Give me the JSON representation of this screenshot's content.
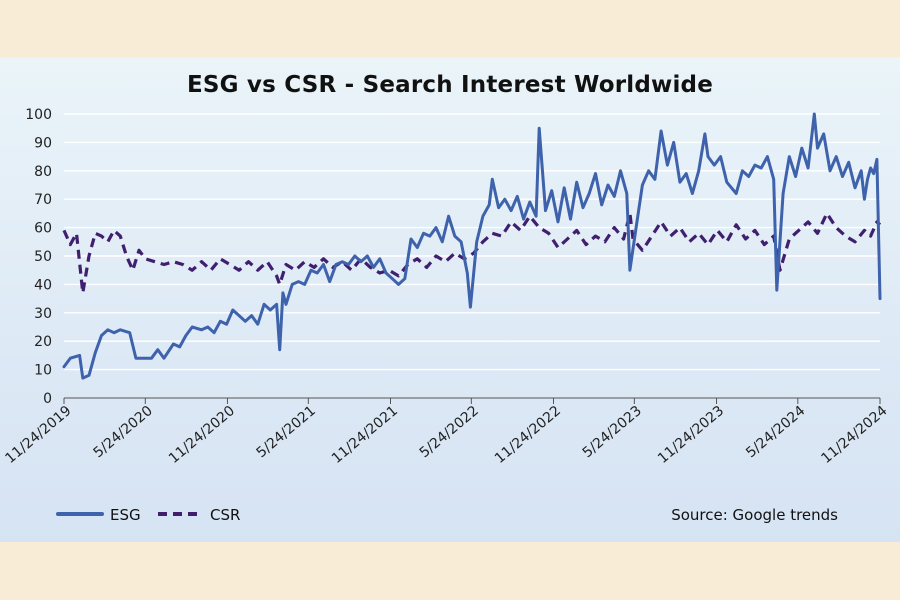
{
  "chart_data": {
    "type": "line",
    "title": "ESG vs CSR - Search Interest Worldwide",
    "xlabel": "",
    "ylabel": "",
    "ylim": [
      0,
      100
    ],
    "xlim": [
      "2019-11-24",
      "2024-11-24"
    ],
    "yticks": [
      0,
      10,
      20,
      30,
      40,
      50,
      60,
      70,
      80,
      90,
      100
    ],
    "xtick_labels": [
      "11/24/2019",
      "5/24/2020",
      "11/24/2020",
      "5/24/2021",
      "11/24/2021",
      "5/24/2022",
      "11/24/2022",
      "5/24/2023",
      "11/24/2023",
      "5/24/2024",
      "11/24/2024"
    ],
    "xtick_dates": [
      "2019-11-24",
      "2020-05-24",
      "2020-11-24",
      "2021-05-24",
      "2021-11-24",
      "2022-05-24",
      "2022-11-24",
      "2023-05-24",
      "2023-11-24",
      "2024-05-24",
      "2024-11-24"
    ],
    "grid": true,
    "legend_position": "bottom-left",
    "source": "Source: Google trends",
    "series": [
      {
        "name": "ESG",
        "style": "solid",
        "color": "#3e62ab",
        "points": [
          [
            "2019-11-24",
            11
          ],
          [
            "2019-12-08",
            14
          ],
          [
            "2019-12-29",
            15
          ],
          [
            "2020-01-05",
            7
          ],
          [
            "2020-01-19",
            8
          ],
          [
            "2020-02-02",
            16
          ],
          [
            "2020-02-16",
            22
          ],
          [
            "2020-03-01",
            24
          ],
          [
            "2020-03-15",
            23
          ],
          [
            "2020-03-29",
            24
          ],
          [
            "2020-04-19",
            23
          ],
          [
            "2020-05-03",
            14
          ],
          [
            "2020-05-17",
            14
          ],
          [
            "2020-06-07",
            14
          ],
          [
            "2020-06-21",
            17
          ],
          [
            "2020-07-05",
            14
          ],
          [
            "2020-07-26",
            19
          ],
          [
            "2020-08-09",
            18
          ],
          [
            "2020-08-23",
            22
          ],
          [
            "2020-09-06",
            25
          ],
          [
            "2020-09-27",
            24
          ],
          [
            "2020-10-11",
            25
          ],
          [
            "2020-10-25",
            23
          ],
          [
            "2020-11-08",
            27
          ],
          [
            "2020-11-22",
            26
          ],
          [
            "2020-12-06",
            31
          ],
          [
            "2020-12-20",
            29
          ],
          [
            "2021-01-03",
            27
          ],
          [
            "2021-01-17",
            29
          ],
          [
            "2021-01-31",
            26
          ],
          [
            "2021-02-14",
            33
          ],
          [
            "2021-02-28",
            31
          ],
          [
            "2021-03-14",
            33
          ],
          [
            "2021-03-21",
            17
          ],
          [
            "2021-03-28",
            37
          ],
          [
            "2021-04-04",
            33
          ],
          [
            "2021-04-18",
            40
          ],
          [
            "2021-05-02",
            41
          ],
          [
            "2021-05-16",
            40
          ],
          [
            "2021-05-30",
            45
          ],
          [
            "2021-06-13",
            44
          ],
          [
            "2021-06-27",
            47
          ],
          [
            "2021-07-11",
            41
          ],
          [
            "2021-07-25",
            47
          ],
          [
            "2021-08-08",
            48
          ],
          [
            "2021-08-22",
            47
          ],
          [
            "2021-09-05",
            50
          ],
          [
            "2021-09-19",
            48
          ],
          [
            "2021-10-03",
            50
          ],
          [
            "2021-10-17",
            46
          ],
          [
            "2021-10-31",
            49
          ],
          [
            "2021-11-14",
            44
          ],
          [
            "2021-11-28",
            42
          ],
          [
            "2021-12-12",
            40
          ],
          [
            "2021-12-26",
            42
          ],
          [
            "2022-01-09",
            56
          ],
          [
            "2022-01-23",
            53
          ],
          [
            "2022-02-06",
            58
          ],
          [
            "2022-02-20",
            57
          ],
          [
            "2022-03-06",
            60
          ],
          [
            "2022-03-20",
            55
          ],
          [
            "2022-04-03",
            64
          ],
          [
            "2022-04-17",
            57
          ],
          [
            "2022-05-01",
            55
          ],
          [
            "2022-05-15",
            44
          ],
          [
            "2022-05-22",
            32
          ],
          [
            "2022-06-05",
            55
          ],
          [
            "2022-06-19",
            64
          ],
          [
            "2022-07-03",
            68
          ],
          [
            "2022-07-10",
            77
          ],
          [
            "2022-07-24",
            67
          ],
          [
            "2022-08-07",
            70
          ],
          [
            "2022-08-21",
            66
          ],
          [
            "2022-09-04",
            71
          ],
          [
            "2022-09-18",
            63
          ],
          [
            "2022-10-02",
            69
          ],
          [
            "2022-10-16",
            64
          ],
          [
            "2022-10-23",
            95
          ],
          [
            "2022-11-06",
            66
          ],
          [
            "2022-11-20",
            73
          ],
          [
            "2022-12-04",
            62
          ],
          [
            "2022-12-18",
            74
          ],
          [
            "2023-01-01",
            63
          ],
          [
            "2023-01-15",
            76
          ],
          [
            "2023-01-29",
            67
          ],
          [
            "2023-02-12",
            72
          ],
          [
            "2023-02-26",
            79
          ],
          [
            "2023-03-12",
            68
          ],
          [
            "2023-03-26",
            75
          ],
          [
            "2023-04-09",
            71
          ],
          [
            "2023-04-23",
            80
          ],
          [
            "2023-05-07",
            72
          ],
          [
            "2023-05-14",
            45
          ],
          [
            "2023-05-28",
            60
          ],
          [
            "2023-06-11",
            75
          ],
          [
            "2023-06-25",
            80
          ],
          [
            "2023-07-09",
            77
          ],
          [
            "2023-07-23",
            94
          ],
          [
            "2023-08-06",
            82
          ],
          [
            "2023-08-20",
            90
          ],
          [
            "2023-09-03",
            76
          ],
          [
            "2023-09-17",
            79
          ],
          [
            "2023-10-01",
            72
          ],
          [
            "2023-10-15",
            80
          ],
          [
            "2023-10-29",
            93
          ],
          [
            "2023-11-05",
            85
          ],
          [
            "2023-11-19",
            82
          ],
          [
            "2023-12-03",
            85
          ],
          [
            "2023-12-17",
            76
          ],
          [
            "2024-01-07",
            72
          ],
          [
            "2024-01-21",
            80
          ],
          [
            "2024-02-04",
            78
          ],
          [
            "2024-02-18",
            82
          ],
          [
            "2024-03-03",
            81
          ],
          [
            "2024-03-17",
            85
          ],
          [
            "2024-03-31",
            77
          ],
          [
            "2024-04-07",
            38
          ],
          [
            "2024-04-21",
            72
          ],
          [
            "2024-05-05",
            85
          ],
          [
            "2024-05-19",
            78
          ],
          [
            "2024-06-02",
            88
          ],
          [
            "2024-06-16",
            81
          ],
          [
            "2024-06-30",
            100
          ],
          [
            "2024-07-07",
            88
          ],
          [
            "2024-07-21",
            93
          ],
          [
            "2024-08-04",
            80
          ],
          [
            "2024-08-18",
            85
          ],
          [
            "2024-09-01",
            78
          ],
          [
            "2024-09-15",
            83
          ],
          [
            "2024-09-29",
            74
          ],
          [
            "2024-10-13",
            80
          ],
          [
            "2024-10-20",
            70
          ],
          [
            "2024-10-27",
            77
          ],
          [
            "2024-11-03",
            81
          ],
          [
            "2024-11-10",
            79
          ],
          [
            "2024-11-17",
            84
          ],
          [
            "2024-11-24",
            35
          ]
        ]
      },
      {
        "name": "CSR",
        "style": "dashed",
        "color": "#3f1f6e",
        "points": [
          [
            "2019-11-24",
            59
          ],
          [
            "2019-12-08",
            54
          ],
          [
            "2019-12-22",
            58
          ],
          [
            "2020-01-05",
            37
          ],
          [
            "2020-01-19",
            50
          ],
          [
            "2020-02-02",
            58
          ],
          [
            "2020-02-16",
            57
          ],
          [
            "2020-03-01",
            55
          ],
          [
            "2020-03-15",
            59
          ],
          [
            "2020-03-29",
            57
          ],
          [
            "2020-04-12",
            50
          ],
          [
            "2020-04-26",
            45
          ],
          [
            "2020-05-10",
            52
          ],
          [
            "2020-05-24",
            49
          ],
          [
            "2020-06-14",
            48
          ],
          [
            "2020-07-05",
            47
          ],
          [
            "2020-07-26",
            48
          ],
          [
            "2020-08-16",
            47
          ],
          [
            "2020-09-06",
            45
          ],
          [
            "2020-09-27",
            48
          ],
          [
            "2020-10-18",
            45
          ],
          [
            "2020-11-08",
            49
          ],
          [
            "2020-11-29",
            47
          ],
          [
            "2020-12-20",
            45
          ],
          [
            "2021-01-10",
            48
          ],
          [
            "2021-01-31",
            45
          ],
          [
            "2021-02-21",
            48
          ],
          [
            "2021-03-14",
            43
          ],
          [
            "2021-03-21",
            40
          ],
          [
            "2021-04-04",
            47
          ],
          [
            "2021-04-25",
            45
          ],
          [
            "2021-05-16",
            48
          ],
          [
            "2021-06-06",
            46
          ],
          [
            "2021-06-27",
            49
          ],
          [
            "2021-07-18",
            46
          ],
          [
            "2021-08-08",
            48
          ],
          [
            "2021-08-29",
            45
          ],
          [
            "2021-09-19",
            49
          ],
          [
            "2021-10-10",
            46
          ],
          [
            "2021-10-31",
            44
          ],
          [
            "2021-11-21",
            45
          ],
          [
            "2021-12-12",
            43
          ],
          [
            "2022-01-02",
            47
          ],
          [
            "2022-01-23",
            49
          ],
          [
            "2022-02-13",
            46
          ],
          [
            "2022-03-06",
            50
          ],
          [
            "2022-03-27",
            48
          ],
          [
            "2022-04-17",
            51
          ],
          [
            "2022-05-08",
            49
          ],
          [
            "2022-05-29",
            51
          ],
          [
            "2022-06-19",
            55
          ],
          [
            "2022-07-10",
            58
          ],
          [
            "2022-07-31",
            57
          ],
          [
            "2022-08-21",
            62
          ],
          [
            "2022-09-11",
            59
          ],
          [
            "2022-10-02",
            64
          ],
          [
            "2022-10-23",
            60
          ],
          [
            "2022-11-13",
            58
          ],
          [
            "2022-12-04",
            53
          ],
          [
            "2022-12-25",
            56
          ],
          [
            "2023-01-15",
            59
          ],
          [
            "2023-02-05",
            54
          ],
          [
            "2023-02-26",
            57
          ],
          [
            "2023-03-19",
            55
          ],
          [
            "2023-04-09",
            60
          ],
          [
            "2023-04-30",
            56
          ],
          [
            "2023-05-14",
            65
          ],
          [
            "2023-05-21",
            56
          ],
          [
            "2023-06-11",
            52
          ],
          [
            "2023-07-02",
            57
          ],
          [
            "2023-07-23",
            62
          ],
          [
            "2023-08-13",
            57
          ],
          [
            "2023-09-03",
            60
          ],
          [
            "2023-09-24",
            55
          ],
          [
            "2023-10-15",
            58
          ],
          [
            "2023-11-05",
            54
          ],
          [
            "2023-11-26",
            59
          ],
          [
            "2023-12-17",
            55
          ],
          [
            "2024-01-07",
            61
          ],
          [
            "2024-01-28",
            56
          ],
          [
            "2024-02-18",
            59
          ],
          [
            "2024-03-10",
            54
          ],
          [
            "2024-03-31",
            57
          ],
          [
            "2024-04-14",
            45
          ],
          [
            "2024-05-05",
            56
          ],
          [
            "2024-05-26",
            59
          ],
          [
            "2024-06-16",
            62
          ],
          [
            "2024-07-07",
            58
          ],
          [
            "2024-07-28",
            65
          ],
          [
            "2024-08-18",
            60
          ],
          [
            "2024-09-08",
            57
          ],
          [
            "2024-09-29",
            55
          ],
          [
            "2024-10-20",
            59
          ],
          [
            "2024-11-03",
            57
          ],
          [
            "2024-11-17",
            62
          ],
          [
            "2024-11-24",
            61
          ]
        ]
      }
    ]
  }
}
